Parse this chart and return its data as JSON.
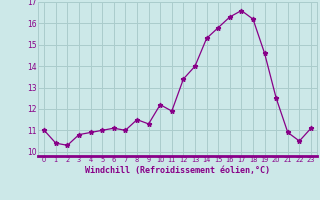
{
  "x": [
    0,
    1,
    2,
    3,
    4,
    5,
    6,
    7,
    8,
    9,
    10,
    11,
    12,
    13,
    14,
    15,
    16,
    17,
    18,
    19,
    20,
    21,
    22,
    23
  ],
  "y": [
    11.0,
    10.4,
    10.3,
    10.8,
    10.9,
    11.0,
    11.1,
    11.0,
    11.5,
    11.3,
    12.2,
    11.9,
    13.4,
    14.0,
    15.3,
    15.8,
    16.3,
    16.6,
    16.2,
    14.6,
    12.5,
    10.9,
    10.5,
    11.1
  ],
  "bg_color": "#cce8e8",
  "grid_color": "#aacccc",
  "line_color": "#880088",
  "marker_color": "#880088",
  "xlabel": "Windchill (Refroidissement éolien,°C)",
  "xlabel_color": "#880088",
  "tick_color": "#880088",
  "axis_line_color": "#880088",
  "ylim": [
    9.8,
    17.0
  ],
  "xlim": [
    -0.5,
    23.5
  ],
  "yticks": [
    10,
    11,
    12,
    13,
    14,
    15,
    16,
    17
  ],
  "xticks": [
    0,
    1,
    2,
    3,
    4,
    5,
    6,
    7,
    8,
    9,
    10,
    11,
    12,
    13,
    14,
    15,
    16,
    17,
    18,
    19,
    20,
    21,
    22,
    23
  ],
  "xtick_labels": [
    "0",
    "1",
    "2",
    "3",
    "4",
    "5",
    "6",
    "7",
    "8",
    "9",
    "10",
    "11",
    "12",
    "13",
    "14",
    "15",
    "16",
    "17",
    "18",
    "19",
    "20",
    "21",
    "22",
    "23"
  ]
}
